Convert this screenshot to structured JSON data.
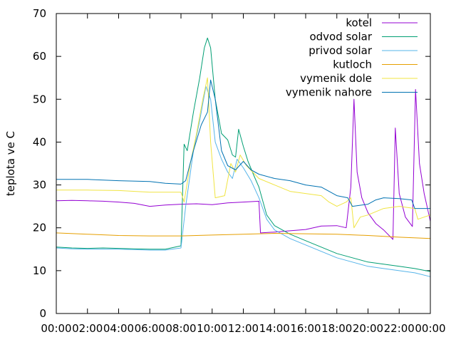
{
  "chart_data": {
    "type": "line",
    "ylabel": "teplota ve C",
    "xlim": [
      0,
      24
    ],
    "ylim": [
      0,
      70
    ],
    "grid": false,
    "legend_position": "top-right",
    "x_ticks": [
      {
        "v": 0,
        "label": "00:00"
      },
      {
        "v": 2,
        "label": "02:00"
      },
      {
        "v": 4,
        "label": "04:00"
      },
      {
        "v": 6,
        "label": "06:00"
      },
      {
        "v": 8,
        "label": "08:00"
      },
      {
        "v": 10,
        "label": "10:00"
      },
      {
        "v": 12,
        "label": "12:00"
      },
      {
        "v": 14,
        "label": "14:00"
      },
      {
        "v": 16,
        "label": "16:00"
      },
      {
        "v": 18,
        "label": "18:00"
      },
      {
        "v": 20,
        "label": "20:00"
      },
      {
        "v": 22,
        "label": "22:00"
      },
      {
        "v": 24,
        "label": "00:00"
      }
    ],
    "y_ticks": [
      {
        "v": 0,
        "label": "0"
      },
      {
        "v": 10,
        "label": "10"
      },
      {
        "v": 20,
        "label": "20"
      },
      {
        "v": 30,
        "label": "30"
      },
      {
        "v": 40,
        "label": "40"
      },
      {
        "v": 50,
        "label": "50"
      },
      {
        "v": 60,
        "label": "60"
      },
      {
        "v": 70,
        "label": "70"
      }
    ],
    "series": [
      {
        "name": "kotel",
        "color": "#9400d3",
        "points": [
          [
            0,
            26.3
          ],
          [
            1,
            26.4
          ],
          [
            2,
            26.3
          ],
          [
            3,
            26.2
          ],
          [
            4,
            26.0
          ],
          [
            5,
            25.7
          ],
          [
            6,
            25.0
          ],
          [
            7,
            25.3
          ],
          [
            8,
            25.5
          ],
          [
            9,
            25.6
          ],
          [
            10,
            25.4
          ],
          [
            11,
            25.8
          ],
          [
            12,
            26.0
          ],
          [
            13,
            26.2
          ],
          [
            13.1,
            18.8
          ],
          [
            14,
            19.0
          ],
          [
            15,
            19.3
          ],
          [
            16,
            19.6
          ],
          [
            17,
            20.4
          ],
          [
            18,
            20.5
          ],
          [
            18.6,
            20.0
          ],
          [
            18.9,
            29.5
          ],
          [
            19.1,
            50.0
          ],
          [
            19.3,
            33.0
          ],
          [
            19.6,
            27.0
          ],
          [
            20,
            23.5
          ],
          [
            20.5,
            21.0
          ],
          [
            21,
            19.5
          ],
          [
            21.6,
            17.3
          ],
          [
            21.75,
            43.3
          ],
          [
            22,
            28.0
          ],
          [
            22.4,
            22.5
          ],
          [
            22.85,
            20.3
          ],
          [
            23.05,
            52.3
          ],
          [
            23.3,
            35.0
          ],
          [
            23.6,
            28.0
          ],
          [
            23.85,
            24.0
          ],
          [
            24,
            21.5
          ]
        ]
      },
      {
        "name": "odvod solar",
        "color": "#009e73",
        "points": [
          [
            0,
            15.5
          ],
          [
            1,
            15.3
          ],
          [
            2,
            15.2
          ],
          [
            3,
            15.3
          ],
          [
            4,
            15.2
          ],
          [
            5,
            15.1
          ],
          [
            6,
            15.0
          ],
          [
            7,
            15.0
          ],
          [
            8,
            15.8
          ],
          [
            8.2,
            39.5
          ],
          [
            8.4,
            38.0
          ],
          [
            8.8,
            47.0
          ],
          [
            9.2,
            55.0
          ],
          [
            9.5,
            62.0
          ],
          [
            9.7,
            64.3
          ],
          [
            9.9,
            62.0
          ],
          [
            10.2,
            50.0
          ],
          [
            10.6,
            42.0
          ],
          [
            11,
            40.5
          ],
          [
            11.3,
            37.0
          ],
          [
            11.5,
            36.5
          ],
          [
            11.7,
            43.0
          ],
          [
            12,
            39.0
          ],
          [
            12.3,
            35.5
          ],
          [
            12.7,
            32.0
          ],
          [
            13,
            29.5
          ],
          [
            13.5,
            23.0
          ],
          [
            14,
            20.5
          ],
          [
            15,
            18.5
          ],
          [
            16,
            17.0
          ],
          [
            17,
            15.5
          ],
          [
            18,
            14.0
          ],
          [
            19,
            13.0
          ],
          [
            20,
            12.0
          ],
          [
            21,
            11.5
          ],
          [
            22,
            11.0
          ],
          [
            23,
            10.5
          ],
          [
            24,
            9.8
          ]
        ]
      },
      {
        "name": "privod solar",
        "color": "#56b4e9",
        "points": [
          [
            0,
            15.3
          ],
          [
            1,
            15.1
          ],
          [
            2,
            15.0
          ],
          [
            3,
            15.0
          ],
          [
            4,
            15.0
          ],
          [
            5,
            14.9
          ],
          [
            6,
            14.8
          ],
          [
            7,
            14.8
          ],
          [
            8,
            15.3
          ],
          [
            8.3,
            25.0
          ],
          [
            8.8,
            38.0
          ],
          [
            9.2,
            45.0
          ],
          [
            9.6,
            53.0
          ],
          [
            9.9,
            50.0
          ],
          [
            10.2,
            40.0
          ],
          [
            10.6,
            36.0
          ],
          [
            11,
            33.0
          ],
          [
            11.3,
            31.5
          ],
          [
            11.6,
            36.0
          ],
          [
            12,
            34.0
          ],
          [
            12.5,
            31.0
          ],
          [
            13,
            27.0
          ],
          [
            13.5,
            22.0
          ],
          [
            14,
            19.5
          ],
          [
            15,
            17.5
          ],
          [
            16,
            16.0
          ],
          [
            17,
            14.5
          ],
          [
            18,
            13.0
          ],
          [
            19,
            12.0
          ],
          [
            20,
            11.0
          ],
          [
            21,
            10.5
          ],
          [
            22,
            10.0
          ],
          [
            23,
            9.5
          ],
          [
            24,
            8.6
          ]
        ]
      },
      {
        "name": "kutloch",
        "color": "#e69f00",
        "points": [
          [
            0,
            18.8
          ],
          [
            2,
            18.5
          ],
          [
            4,
            18.2
          ],
          [
            6,
            18.1
          ],
          [
            8,
            18.1
          ],
          [
            10,
            18.3
          ],
          [
            12,
            18.5
          ],
          [
            14,
            18.7
          ],
          [
            16,
            18.6
          ],
          [
            18,
            18.5
          ],
          [
            20,
            18.2
          ],
          [
            22,
            17.8
          ],
          [
            24,
            17.5
          ]
        ]
      },
      {
        "name": "vymenik dole",
        "color": "#f0e442",
        "points": [
          [
            0,
            28.8
          ],
          [
            2,
            28.8
          ],
          [
            4,
            28.7
          ],
          [
            6,
            28.3
          ],
          [
            8,
            28.3
          ],
          [
            8.2,
            26.0
          ],
          [
            8.6,
            35.0
          ],
          [
            9,
            42.0
          ],
          [
            9.4,
            50.0
          ],
          [
            9.7,
            55.0
          ],
          [
            9.9,
            40.0
          ],
          [
            10.2,
            27.0
          ],
          [
            10.8,
            27.5
          ],
          [
            11.2,
            35.0
          ],
          [
            11.5,
            33.0
          ],
          [
            11.8,
            37.0
          ],
          [
            12.2,
            34.5
          ],
          [
            13,
            31.5
          ],
          [
            14,
            30.0
          ],
          [
            15,
            28.5
          ],
          [
            16,
            28.0
          ],
          [
            17,
            27.5
          ],
          [
            17.5,
            26.0
          ],
          [
            18,
            25.0
          ],
          [
            18.6,
            26.0
          ],
          [
            18.9,
            27.0
          ],
          [
            19.1,
            20.0
          ],
          [
            19.5,
            22.5
          ],
          [
            20,
            23.0
          ],
          [
            21,
            24.5
          ],
          [
            22,
            25.0
          ],
          [
            23,
            24.5
          ],
          [
            23.2,
            22.0
          ],
          [
            24,
            23.0
          ]
        ]
      },
      {
        "name": "vymenik nahore",
        "color": "#0072b2",
        "points": [
          [
            0,
            31.3
          ],
          [
            2,
            31.3
          ],
          [
            4,
            31.0
          ],
          [
            6,
            30.8
          ],
          [
            7,
            30.4
          ],
          [
            8,
            30.2
          ],
          [
            8.3,
            31.0
          ],
          [
            8.8,
            38.0
          ],
          [
            9.3,
            44.0
          ],
          [
            9.7,
            47.0
          ],
          [
            9.9,
            54.5
          ],
          [
            10.2,
            50.0
          ],
          [
            10.6,
            38.0
          ],
          [
            11,
            34.5
          ],
          [
            11.5,
            33.5
          ],
          [
            12,
            35.5
          ],
          [
            12.5,
            33.5
          ],
          [
            13,
            32.5
          ],
          [
            14,
            31.5
          ],
          [
            15,
            31.0
          ],
          [
            16,
            30.0
          ],
          [
            17,
            29.5
          ],
          [
            18,
            27.5
          ],
          [
            18.7,
            27.0
          ],
          [
            19,
            25.0
          ],
          [
            20,
            25.5
          ],
          [
            20.5,
            26.5
          ],
          [
            21,
            27.0
          ],
          [
            22,
            26.8
          ],
          [
            22.8,
            26.5
          ],
          [
            23,
            24.5
          ],
          [
            24,
            24.5
          ]
        ]
      }
    ]
  }
}
